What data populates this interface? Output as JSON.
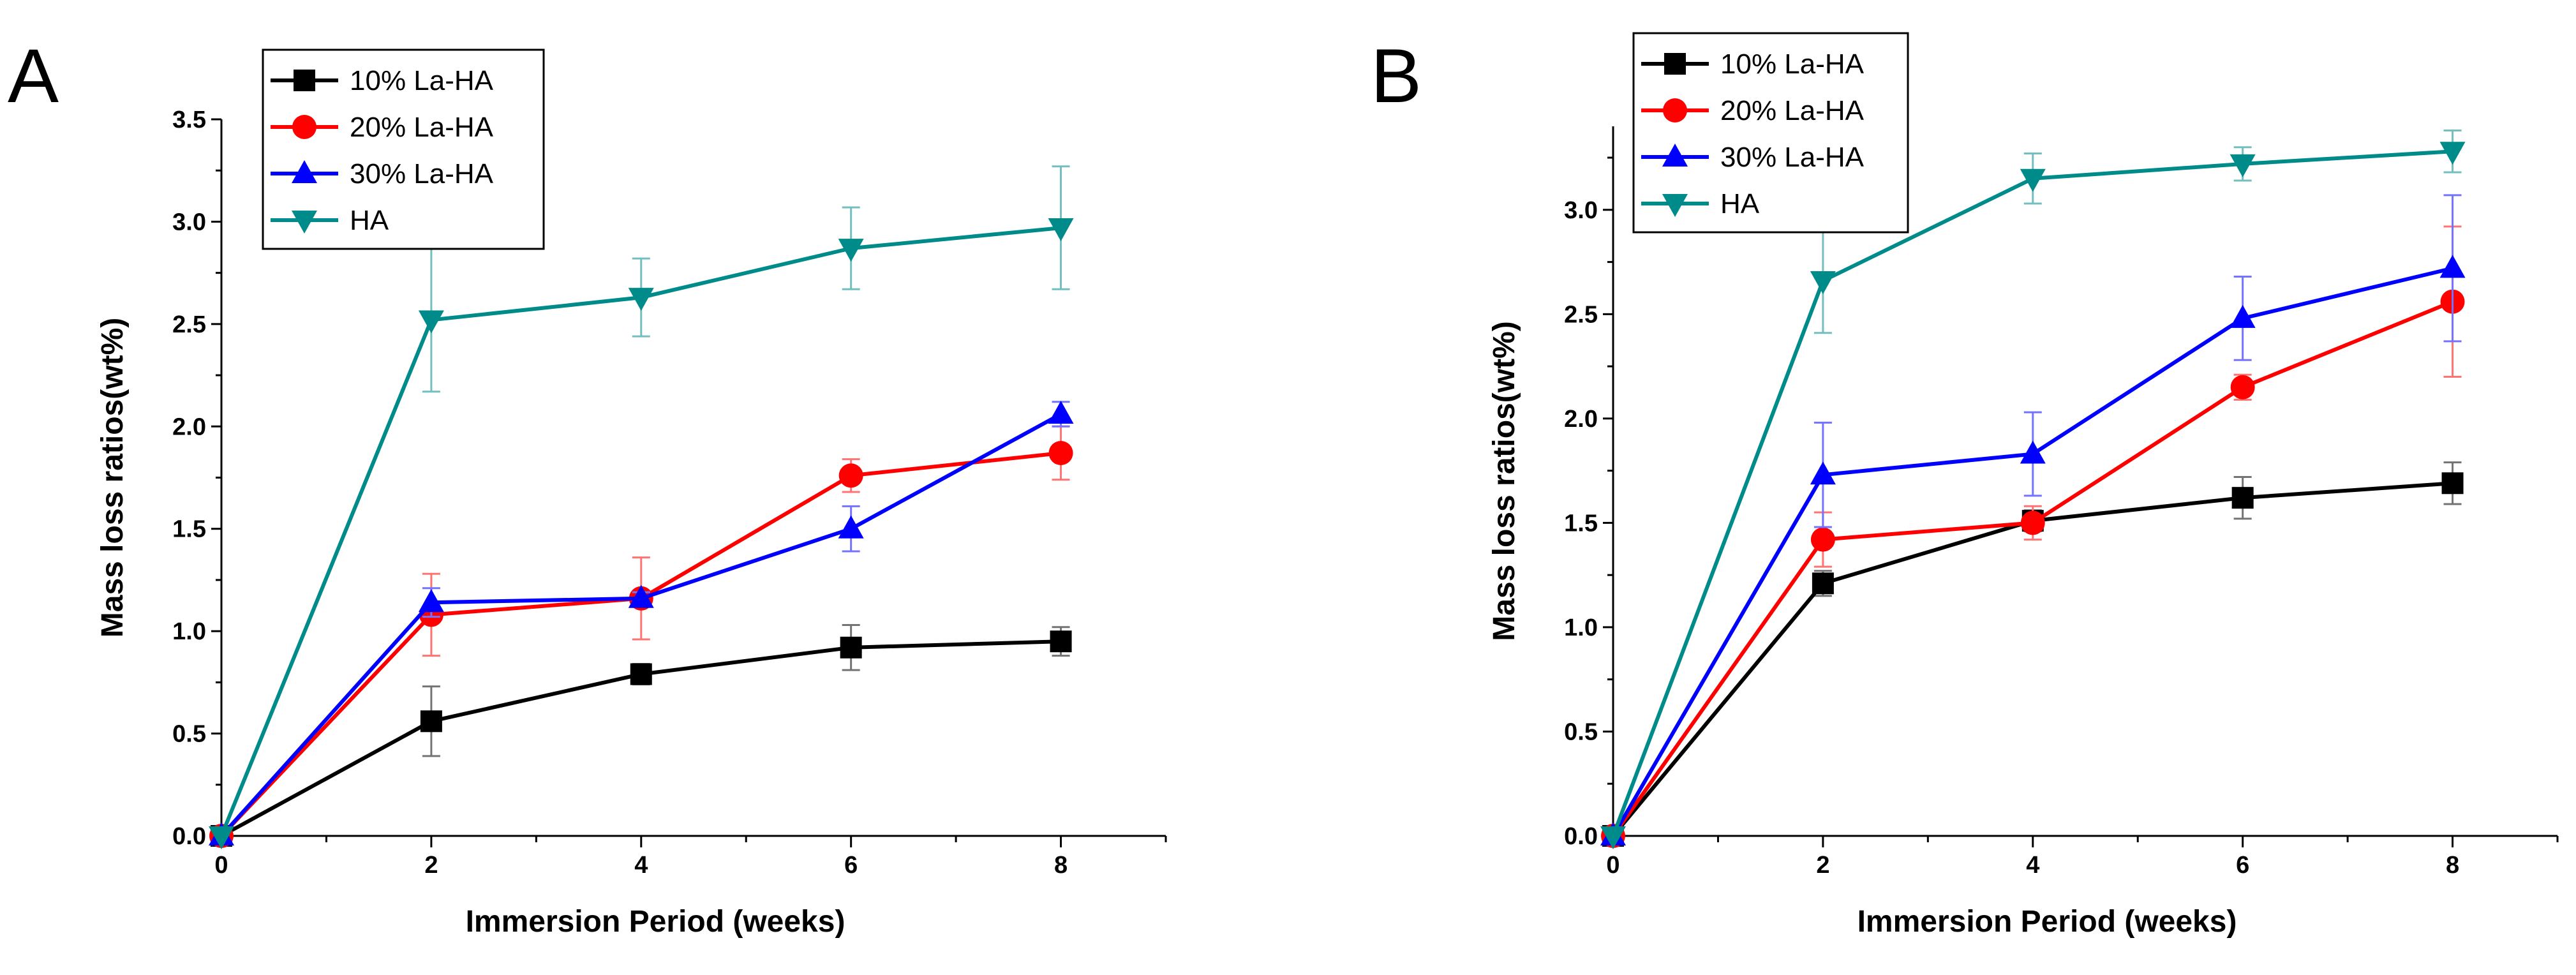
{
  "chart_data": [
    {
      "panel_label": "A",
      "type": "line",
      "xlabel": "Immersion Period (weeks)",
      "ylabel": "Mass loss ratios(wt%)",
      "xlim": [
        0,
        9
      ],
      "ylim": [
        0,
        3.5
      ],
      "xticks": [
        0,
        2,
        4,
        6,
        8
      ],
      "yticks": [
        0.0,
        0.5,
        1.0,
        1.5,
        2.0,
        2.5,
        3.0,
        3.5
      ],
      "x": [
        0,
        2,
        4,
        6,
        8
      ],
      "legend_position": "top-left",
      "series": [
        {
          "name": "10% La-HA",
          "color": "#000000",
          "marker": "square",
          "values": [
            0,
            0.56,
            0.79,
            0.92,
            0.95
          ],
          "errors": [
            0,
            0.17,
            0.05,
            0.11,
            0.07
          ]
        },
        {
          "name": "20% La-HA",
          "color": "#ff0000",
          "marker": "circle",
          "values": [
            0,
            1.08,
            1.16,
            1.76,
            1.87
          ],
          "errors": [
            0,
            0.2,
            0.2,
            0.08,
            0.13
          ]
        },
        {
          "name": "30% La-HA",
          "color": "#0000ff",
          "marker": "triangle-up",
          "values": [
            0,
            1.14,
            1.16,
            1.5,
            2.06
          ],
          "errors": [
            0,
            0.07,
            0.03,
            0.11,
            0.06
          ]
        },
        {
          "name": "HA",
          "color": "#008b8b",
          "marker": "triangle-down",
          "values": [
            0,
            2.52,
            2.63,
            2.87,
            2.97
          ],
          "errors": [
            0,
            0.35,
            0.19,
            0.2,
            0.3
          ]
        }
      ]
    },
    {
      "panel_label": "B",
      "type": "line",
      "xlabel": "Immersion Period (weeks)",
      "ylabel": "Mass loss ratios(wt%)",
      "xlim": [
        0,
        9
      ],
      "ylim": [
        0,
        3.4
      ],
      "xticks": [
        0,
        2,
        4,
        6,
        8
      ],
      "yticks": [
        0.0,
        0.5,
        1.0,
        1.5,
        2.0,
        2.5,
        3.0
      ],
      "x": [
        0,
        2,
        4,
        6,
        8
      ],
      "legend_position": "top-left",
      "series": [
        {
          "name": "10% La-HA",
          "color": "#000000",
          "marker": "square",
          "values": [
            0,
            1.21,
            1.51,
            1.62,
            1.69
          ],
          "errors": [
            0,
            0.06,
            0.05,
            0.1,
            0.1
          ]
        },
        {
          "name": "20% La-HA",
          "color": "#ff0000",
          "marker": "circle",
          "values": [
            0,
            1.42,
            1.5,
            2.15,
            2.56
          ],
          "errors": [
            0,
            0.13,
            0.08,
            0.06,
            0.36
          ]
        },
        {
          "name": "30% La-HA",
          "color": "#0000ff",
          "marker": "triangle-up",
          "values": [
            0,
            1.73,
            1.83,
            2.48,
            2.72
          ],
          "errors": [
            0,
            0.25,
            0.2,
            0.2,
            0.35
          ]
        },
        {
          "name": "HA",
          "color": "#008b8b",
          "marker": "triangle-down",
          "values": [
            0,
            2.66,
            3.15,
            3.22,
            3.28
          ],
          "errors": [
            0,
            0.25,
            0.12,
            0.08,
            0.1
          ]
        }
      ]
    }
  ]
}
